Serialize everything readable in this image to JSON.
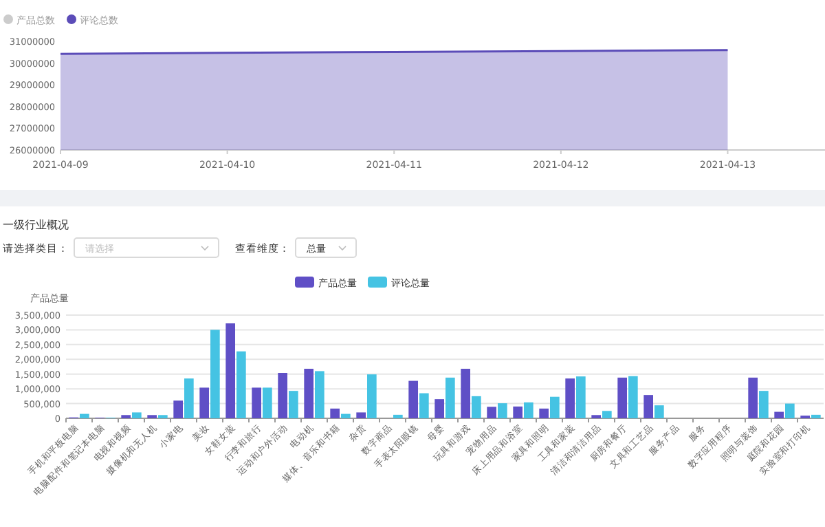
{
  "chart_data": [
    {
      "type": "area",
      "x": [
        "2021-04-09",
        "2021-04-10",
        "2021-04-11",
        "2021-04-12",
        "2021-04-13"
      ],
      "series": [
        {
          "name": "产品总数",
          "color": "#cccccc",
          "values": [
            null,
            null,
            null,
            null,
            null
          ]
        },
        {
          "name": "评论总数",
          "color": "#5b4cb8",
          "values": [
            30420000,
            30470000,
            30510000,
            30550000,
            30600000
          ]
        }
      ],
      "xlim": [
        "2021-04-09",
        "2021-04-13T14:00"
      ],
      "xticks": [
        "2021-04-09",
        "2021-04-10",
        "2021-04-11",
        "2021-04-12",
        "2021-04-13"
      ],
      "ylim": [
        26000000,
        31000000
      ],
      "yticks": [
        26000000,
        27000000,
        28000000,
        29000000,
        30000000,
        31000000
      ],
      "grid": false,
      "legend": "top left"
    },
    {
      "type": "bar",
      "title": "一级行业概况",
      "ylabel": "产品总量",
      "annotations": [
        "请选择类目：",
        "请选择",
        "查看维度：",
        "总量"
      ],
      "categories": [
        "手机和平板电脑",
        "电脑配件和笔记本电脑",
        "电视和视频",
        "摄像机和无人机",
        "小家电",
        "美妆",
        "女鞋女装",
        "行李和旅行",
        "运动和户外活动",
        "电动机",
        "媒体、音乐和书籍",
        "杂货",
        "数字商品",
        "手表太阳眼镜",
        "母婴",
        "玩具和游戏",
        "宠物用品",
        "床上用品和浴室",
        "家具和照明",
        "工具和家装",
        "清洁和清洁用品",
        "厨房和餐厅",
        "文具和工艺品",
        "服务产品",
        "服务",
        "数字应用程序",
        "照明与装饰",
        "庭院和花园",
        "实验室和打印机"
      ],
      "series": [
        {
          "name": "产品总量",
          "color": "#5f4fc6",
          "values": [
            30000,
            20000,
            110000,
            110000,
            600000,
            1040000,
            3220000,
            1040000,
            1540000,
            1680000,
            330000,
            200000,
            0,
            1270000,
            650000,
            1680000,
            390000,
            400000,
            330000,
            1350000,
            110000,
            1380000,
            790000,
            0,
            0,
            0,
            1380000,
            220000,
            90000
          ]
        },
        {
          "name": "评论总量",
          "color": "#45c3e3",
          "values": [
            150000,
            20000,
            200000,
            110000,
            1350000,
            3000000,
            2270000,
            1040000,
            930000,
            1600000,
            150000,
            1490000,
            120000,
            850000,
            1380000,
            750000,
            510000,
            540000,
            730000,
            1420000,
            250000,
            1430000,
            440000,
            0,
            0,
            0,
            930000,
            500000,
            120000
          ]
        }
      ],
      "ylim": [
        0,
        3500000
      ],
      "yticks": [
        {
          "value": 0,
          "label": "0"
        },
        {
          "value": 500000,
          "label": "500,000"
        },
        {
          "value": 1000000,
          "label": "1,000,000"
        },
        {
          "value": 1500000,
          "label": "1,500,000"
        },
        {
          "value": 2000000,
          "label": "2,000,000"
        },
        {
          "value": 2500000,
          "label": "2,500,000"
        },
        {
          "value": 3000000,
          "label": "3,000,000"
        },
        {
          "value": 3500000,
          "label": "3,500,000"
        }
      ],
      "grid": "y",
      "legend": "top"
    }
  ]
}
